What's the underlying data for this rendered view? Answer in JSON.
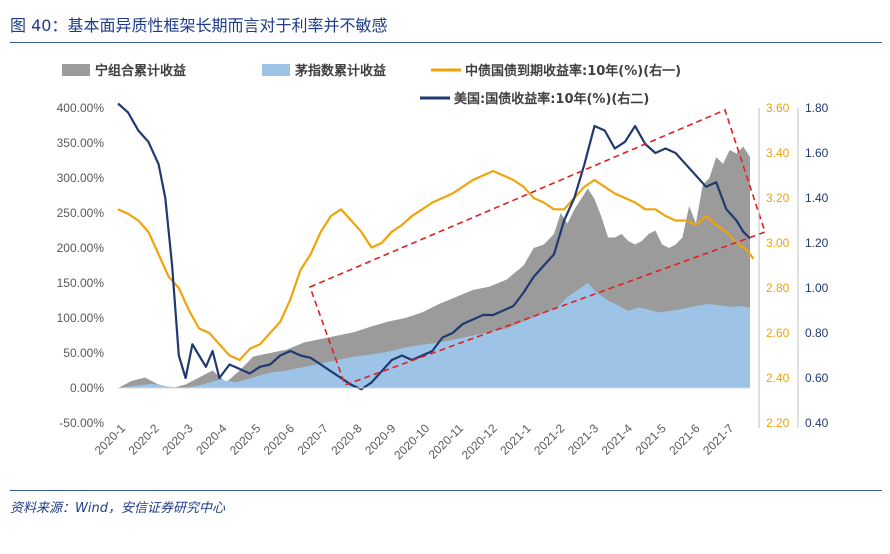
{
  "header": {
    "title": "图 40：基本面异质性框架长期而言对于利率并不敏感"
  },
  "footer": {
    "source": "资料来源：Wind，安信证券研究中心"
  },
  "chart_data": {
    "type": "area+line",
    "title": "",
    "colors": {
      "ning": "#9B9B9B",
      "maotai": "#9DC3E6",
      "cgb": "#F0A30A",
      "ust": "#1F3A70",
      "box": "#E02020",
      "axis_left": "#595959",
      "axis_r1": "#F0A30A",
      "axis_r2": "#1F3A70"
    },
    "legend": [
      "宁组合累计收益",
      "茅指数累计收益",
      "中债国债到期收益率:10年(%)(右一)",
      "美国:国债收益率:10年(%)(右二)"
    ],
    "x_labels": [
      "2020-1",
      "2020-2",
      "2020-3",
      "2020-4",
      "2020-5",
      "2020-6",
      "2020-7",
      "2020-8",
      "2020-9",
      "2020-10",
      "2020-11",
      "2020-12",
      "2021-1",
      "2021-2",
      "2021-3",
      "2021-4",
      "2021-5",
      "2021-6",
      "2021-7"
    ],
    "y_left": {
      "min": -50,
      "max": 400,
      "ticks": [
        "-50.00%",
        "0.00%",
        "50.00%",
        "100.00%",
        "150.00%",
        "200.00%",
        "250.00%",
        "300.00%",
        "350.00%",
        "400.00%"
      ]
    },
    "y_right1": {
      "min": 2.2,
      "max": 3.6,
      "ticks": [
        "2.20",
        "2.40",
        "2.60",
        "2.80",
        "3.00",
        "3.20",
        "3.40",
        "3.60"
      ]
    },
    "y_right2": {
      "min": 0.4,
      "max": 1.8,
      "ticks": [
        "0.40",
        "0.60",
        "0.80",
        "1.00",
        "1.20",
        "1.40",
        "1.60",
        "1.80"
      ]
    },
    "series": [
      {
        "name": "宁组合累计收益",
        "axis": "left",
        "kind": "area",
        "points": [
          [
            0.0,
            0
          ],
          [
            0.4,
            10
          ],
          [
            0.8,
            15
          ],
          [
            1.2,
            5
          ],
          [
            1.6,
            0
          ],
          [
            2.0,
            5
          ],
          [
            2.4,
            15
          ],
          [
            2.8,
            25
          ],
          [
            3.2,
            8
          ],
          [
            3.6,
            25
          ],
          [
            4.0,
            45
          ],
          [
            4.5,
            50
          ],
          [
            5.0,
            55
          ],
          [
            5.5,
            65
          ],
          [
            6.0,
            70
          ],
          [
            6.5,
            75
          ],
          [
            7.0,
            80
          ],
          [
            7.5,
            88
          ],
          [
            8.0,
            95
          ],
          [
            8.5,
            100
          ],
          [
            9.0,
            108
          ],
          [
            9.5,
            120
          ],
          [
            10.0,
            130
          ],
          [
            10.5,
            140
          ],
          [
            11.0,
            145
          ],
          [
            11.5,
            155
          ],
          [
            12.0,
            175
          ],
          [
            12.3,
            200
          ],
          [
            12.6,
            205
          ],
          [
            12.9,
            220
          ],
          [
            13.1,
            250
          ],
          [
            13.3,
            235
          ],
          [
            13.5,
            255
          ],
          [
            13.7,
            270
          ],
          [
            13.9,
            285
          ],
          [
            14.1,
            270
          ],
          [
            14.3,
            245
          ],
          [
            14.5,
            215
          ],
          [
            14.7,
            215
          ],
          [
            14.9,
            220
          ],
          [
            15.1,
            210
          ],
          [
            15.3,
            205
          ],
          [
            15.5,
            210
          ],
          [
            15.7,
            220
          ],
          [
            15.9,
            225
          ],
          [
            16.1,
            205
          ],
          [
            16.3,
            200
          ],
          [
            16.5,
            205
          ],
          [
            16.7,
            215
          ],
          [
            16.9,
            260
          ],
          [
            17.1,
            235
          ],
          [
            17.3,
            290
          ],
          [
            17.5,
            300
          ],
          [
            17.7,
            330
          ],
          [
            17.9,
            320
          ],
          [
            18.1,
            340
          ],
          [
            18.3,
            335
          ],
          [
            18.5,
            345
          ],
          [
            18.7,
            330
          ]
        ]
      },
      {
        "name": "茅指数累计收益",
        "axis": "left",
        "kind": "area",
        "points": [
          [
            0.0,
            0
          ],
          [
            0.5,
            3
          ],
          [
            1.0,
            6
          ],
          [
            1.5,
            2
          ],
          [
            2.0,
            0
          ],
          [
            2.5,
            5
          ],
          [
            3.0,
            12
          ],
          [
            3.5,
            8
          ],
          [
            4.0,
            15
          ],
          [
            4.5,
            22
          ],
          [
            5.0,
            25
          ],
          [
            5.5,
            30
          ],
          [
            6.0,
            35
          ],
          [
            6.5,
            40
          ],
          [
            7.0,
            45
          ],
          [
            7.5,
            48
          ],
          [
            8.0,
            52
          ],
          [
            8.5,
            58
          ],
          [
            9.0,
            62
          ],
          [
            9.5,
            65
          ],
          [
            10.0,
            70
          ],
          [
            10.5,
            75
          ],
          [
            11.0,
            80
          ],
          [
            11.5,
            85
          ],
          [
            12.0,
            95
          ],
          [
            12.5,
            105
          ],
          [
            13.0,
            115
          ],
          [
            13.3,
            130
          ],
          [
            13.6,
            140
          ],
          [
            13.9,
            150
          ],
          [
            14.2,
            135
          ],
          [
            14.5,
            125
          ],
          [
            14.8,
            118
          ],
          [
            15.1,
            110
          ],
          [
            15.4,
            115
          ],
          [
            15.7,
            112
          ],
          [
            16.0,
            108
          ],
          [
            16.3,
            110
          ],
          [
            16.6,
            112
          ],
          [
            16.9,
            115
          ],
          [
            17.2,
            118
          ],
          [
            17.5,
            120
          ],
          [
            17.8,
            118
          ],
          [
            18.1,
            116
          ],
          [
            18.4,
            117
          ],
          [
            18.7,
            115
          ]
        ]
      },
      {
        "name": "中债国债到期收益率:10年(%)(右一)",
        "axis": "right1",
        "kind": "line",
        "points": [
          [
            0.0,
            3.15
          ],
          [
            0.3,
            3.13
          ],
          [
            0.6,
            3.1
          ],
          [
            0.9,
            3.05
          ],
          [
            1.2,
            2.95
          ],
          [
            1.5,
            2.85
          ],
          [
            1.8,
            2.8
          ],
          [
            2.1,
            2.7
          ],
          [
            2.4,
            2.62
          ],
          [
            2.7,
            2.6
          ],
          [
            3.0,
            2.55
          ],
          [
            3.3,
            2.5
          ],
          [
            3.6,
            2.48
          ],
          [
            3.9,
            2.53
          ],
          [
            4.2,
            2.55
          ],
          [
            4.5,
            2.6
          ],
          [
            4.8,
            2.65
          ],
          [
            5.1,
            2.75
          ],
          [
            5.4,
            2.88
          ],
          [
            5.7,
            2.95
          ],
          [
            6.0,
            3.05
          ],
          [
            6.3,
            3.12
          ],
          [
            6.6,
            3.15
          ],
          [
            6.9,
            3.1
          ],
          [
            7.2,
            3.05
          ],
          [
            7.5,
            2.98
          ],
          [
            7.8,
            3.0
          ],
          [
            8.1,
            3.05
          ],
          [
            8.4,
            3.08
          ],
          [
            8.7,
            3.12
          ],
          [
            9.0,
            3.15
          ],
          [
            9.3,
            3.18
          ],
          [
            9.6,
            3.2
          ],
          [
            9.9,
            3.22
          ],
          [
            10.2,
            3.25
          ],
          [
            10.5,
            3.28
          ],
          [
            10.8,
            3.3
          ],
          [
            11.1,
            3.32
          ],
          [
            11.4,
            3.3
          ],
          [
            11.7,
            3.28
          ],
          [
            12.0,
            3.25
          ],
          [
            12.3,
            3.2
          ],
          [
            12.6,
            3.18
          ],
          [
            12.9,
            3.15
          ],
          [
            13.2,
            3.15
          ],
          [
            13.5,
            3.2
          ],
          [
            13.8,
            3.25
          ],
          [
            14.1,
            3.28
          ],
          [
            14.4,
            3.25
          ],
          [
            14.7,
            3.22
          ],
          [
            15.0,
            3.2
          ],
          [
            15.3,
            3.18
          ],
          [
            15.6,
            3.15
          ],
          [
            15.9,
            3.15
          ],
          [
            16.2,
            3.12
          ],
          [
            16.5,
            3.1
          ],
          [
            16.8,
            3.1
          ],
          [
            17.1,
            3.08
          ],
          [
            17.4,
            3.12
          ],
          [
            17.7,
            3.08
          ],
          [
            18.0,
            3.05
          ],
          [
            18.3,
            3.0
          ],
          [
            18.6,
            2.97
          ],
          [
            18.8,
            2.93
          ]
        ]
      },
      {
        "name": "美国:国债收益率:10年(%)(右二)",
        "axis": "right2",
        "kind": "line",
        "points": [
          [
            0.0,
            1.82
          ],
          [
            0.3,
            1.78
          ],
          [
            0.6,
            1.7
          ],
          [
            0.9,
            1.65
          ],
          [
            1.2,
            1.55
          ],
          [
            1.4,
            1.4
          ],
          [
            1.6,
            1.1
          ],
          [
            1.8,
            0.7
          ],
          [
            2.0,
            0.6
          ],
          [
            2.2,
            0.75
          ],
          [
            2.4,
            0.7
          ],
          [
            2.6,
            0.65
          ],
          [
            2.8,
            0.72
          ],
          [
            3.0,
            0.6
          ],
          [
            3.3,
            0.66
          ],
          [
            3.6,
            0.64
          ],
          [
            3.9,
            0.62
          ],
          [
            4.2,
            0.65
          ],
          [
            4.5,
            0.66
          ],
          [
            4.8,
            0.7
          ],
          [
            5.1,
            0.72
          ],
          [
            5.4,
            0.7
          ],
          [
            5.7,
            0.69
          ],
          [
            6.0,
            0.66
          ],
          [
            6.3,
            0.63
          ],
          [
            6.6,
            0.6
          ],
          [
            6.9,
            0.57
          ],
          [
            7.2,
            0.55
          ],
          [
            7.5,
            0.58
          ],
          [
            7.8,
            0.63
          ],
          [
            8.1,
            0.68
          ],
          [
            8.4,
            0.7
          ],
          [
            8.7,
            0.68
          ],
          [
            9.0,
            0.7
          ],
          [
            9.3,
            0.72
          ],
          [
            9.6,
            0.78
          ],
          [
            9.9,
            0.8
          ],
          [
            10.2,
            0.84
          ],
          [
            10.5,
            0.86
          ],
          [
            10.8,
            0.88
          ],
          [
            11.1,
            0.88
          ],
          [
            11.4,
            0.9
          ],
          [
            11.7,
            0.92
          ],
          [
            12.0,
            0.98
          ],
          [
            12.3,
            1.05
          ],
          [
            12.6,
            1.1
          ],
          [
            12.9,
            1.15
          ],
          [
            13.2,
            1.3
          ],
          [
            13.5,
            1.4
          ],
          [
            13.8,
            1.55
          ],
          [
            14.1,
            1.72
          ],
          [
            14.4,
            1.7
          ],
          [
            14.7,
            1.62
          ],
          [
            15.0,
            1.65
          ],
          [
            15.3,
            1.72
          ],
          [
            15.6,
            1.64
          ],
          [
            15.9,
            1.6
          ],
          [
            16.2,
            1.62
          ],
          [
            16.5,
            1.6
          ],
          [
            16.8,
            1.55
          ],
          [
            17.1,
            1.5
          ],
          [
            17.4,
            1.45
          ],
          [
            17.7,
            1.47
          ],
          [
            18.0,
            1.35
          ],
          [
            18.3,
            1.3
          ],
          [
            18.5,
            1.25
          ],
          [
            18.7,
            1.22
          ]
        ]
      }
    ],
    "annotation": "dashed-red-rectangle"
  }
}
